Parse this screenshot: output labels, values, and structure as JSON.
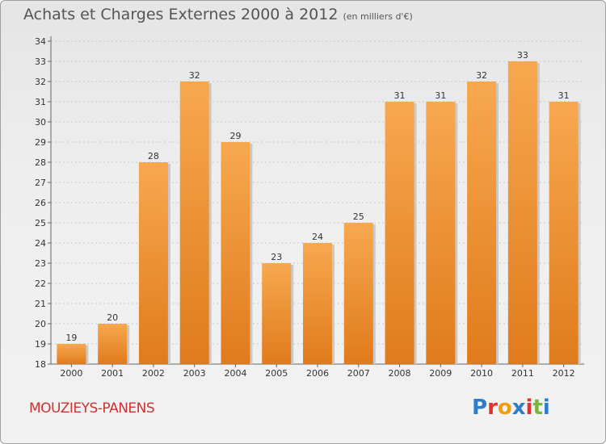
{
  "header": {
    "title": "Achats et Charges Externes 2000 à 2012",
    "unit": "(en milliers d'€)"
  },
  "footer": {
    "commune": "MOUZIEYS-PANENS",
    "logo": "Proxiti"
  },
  "colors": {
    "bar_top": "#f7a84f",
    "bar_bottom": "#e07b1c",
    "logo_letters": [
      "#2f7dc8",
      "#e3312d",
      "#f39c12",
      "#2f7dc8",
      "#e3312d",
      "#7cb342",
      "#2f7dc8"
    ]
  },
  "chart_data": {
    "type": "bar",
    "title": "Achats et Charges Externes 2000 à 2012",
    "subtitle": "(en milliers d'€)",
    "categories": [
      "2000",
      "2001",
      "2002",
      "2003",
      "2004",
      "2005",
      "2006",
      "2007",
      "2008",
      "2009",
      "2010",
      "2011",
      "2012"
    ],
    "values": [
      19,
      20,
      28,
      32,
      29,
      23,
      24,
      25,
      31,
      31,
      32,
      33,
      31
    ],
    "ylim": [
      18,
      34
    ],
    "yticks": [
      18,
      19,
      20,
      21,
      22,
      23,
      24,
      25,
      26,
      27,
      28,
      29,
      30,
      31,
      32,
      33,
      34
    ],
    "grid": true,
    "data_labels": true
  }
}
